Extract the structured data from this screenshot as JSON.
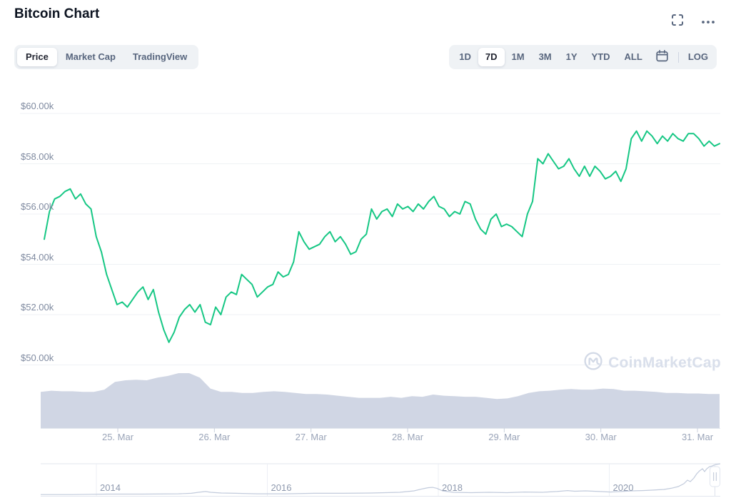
{
  "header": {
    "title": "Bitcoin Chart"
  },
  "window_controls": {
    "fullscreen_icon": "expand-corners",
    "more_icon": "ellipsis"
  },
  "toolbar": {
    "metric_tabs": [
      {
        "label": "Price",
        "active": true
      },
      {
        "label": "Market Cap",
        "active": false
      },
      {
        "label": "TradingView",
        "active": false
      }
    ],
    "range_buttons": [
      {
        "label": "1D",
        "active": false
      },
      {
        "label": "7D",
        "active": true
      },
      {
        "label": "1M",
        "active": false
      },
      {
        "label": "3M",
        "active": false
      },
      {
        "label": "1Y",
        "active": false
      },
      {
        "label": "YTD",
        "active": false
      },
      {
        "label": "ALL",
        "active": false
      }
    ],
    "calendar_icon": "calendar",
    "log_label": "LOG"
  },
  "watermark": {
    "text": "CoinMarketCap",
    "logo": "coinmarketcap-mark"
  },
  "chart_data": {
    "type": "line",
    "title": "Bitcoin price, 7-day window (USD)",
    "line_color": "#16c784",
    "volume_color": "#d0d6e4",
    "grid": true,
    "y_ticks": [
      "$60.00k",
      "$58.00k",
      "$56.00k",
      "$54.00k",
      "$52.00k",
      "$50.00k"
    ],
    "y_tick_values_k": [
      60,
      58,
      56,
      54,
      52,
      50
    ],
    "ylim_k": [
      50,
      60
    ],
    "x_ticks": [
      "25. Mar",
      "26. Mar",
      "27. Mar",
      "28. Mar",
      "29. Mar",
      "30. Mar",
      "31. Mar"
    ],
    "price_series_k": [
      55.0,
      56.1,
      56.6,
      56.7,
      56.9,
      57.0,
      56.6,
      56.8,
      56.4,
      56.2,
      55.1,
      54.5,
      53.6,
      53.0,
      52.4,
      52.5,
      52.3,
      52.6,
      52.9,
      53.1,
      52.6,
      53.0,
      52.1,
      51.4,
      50.9,
      51.3,
      51.9,
      52.2,
      52.4,
      52.1,
      52.4,
      51.7,
      51.6,
      52.3,
      52.0,
      52.7,
      52.9,
      52.8,
      53.6,
      53.4,
      53.2,
      52.7,
      52.9,
      53.1,
      53.2,
      53.7,
      53.5,
      53.6,
      54.1,
      55.3,
      54.9,
      54.6,
      54.7,
      54.8,
      55.1,
      55.3,
      54.9,
      55.1,
      54.8,
      54.4,
      54.5,
      55.0,
      55.2,
      56.2,
      55.8,
      56.1,
      56.2,
      55.9,
      56.4,
      56.2,
      56.3,
      56.1,
      56.4,
      56.2,
      56.5,
      56.7,
      56.3,
      56.2,
      55.9,
      56.1,
      56.0,
      56.5,
      56.4,
      55.8,
      55.4,
      55.2,
      55.8,
      56.0,
      55.5,
      55.6,
      55.5,
      55.3,
      55.1,
      56.0,
      56.5,
      58.2,
      58.0,
      58.4,
      58.1,
      57.8,
      57.9,
      58.2,
      57.8,
      57.5,
      57.9,
      57.5,
      57.9,
      57.7,
      57.4,
      57.5,
      57.7,
      57.3,
      57.8,
      59.0,
      59.3,
      58.9,
      59.3,
      59.1,
      58.8,
      59.1,
      58.9,
      59.2,
      59.0,
      58.9,
      59.2,
      59.2,
      59.0,
      58.7,
      58.9,
      58.7,
      58.8
    ],
    "volume_profile_relative": [
      66,
      68,
      67,
      67,
      66,
      66,
      70,
      84,
      87,
      88,
      87,
      92,
      95,
      100,
      100,
      92,
      72,
      66,
      66,
      64,
      64,
      66,
      67,
      66,
      64,
      62,
      62,
      61,
      59,
      57,
      55,
      55,
      55,
      57,
      55,
      58,
      57,
      61,
      59,
      58,
      57,
      57,
      55,
      53,
      54,
      58,
      64,
      67,
      68,
      70,
      71,
      70,
      70,
      72,
      71,
      68,
      68,
      67,
      66,
      64,
      64,
      63,
      63,
      62,
      62
    ]
  },
  "navigator": {
    "year_labels": [
      "2014",
      "2016",
      "2018",
      "2020"
    ],
    "sparkline_color": "#c2cbdc",
    "sparkline": [
      [
        57,
        0.04
      ],
      [
        100,
        0.04
      ],
      [
        150,
        0.055
      ],
      [
        200,
        0.055
      ],
      [
        250,
        0.065
      ],
      [
        268,
        0.08
      ],
      [
        278,
        0.11
      ],
      [
        288,
        0.135
      ],
      [
        295,
        0.11
      ],
      [
        310,
        0.09
      ],
      [
        330,
        0.08
      ],
      [
        360,
        0.065
      ],
      [
        400,
        0.065
      ],
      [
        440,
        0.08
      ],
      [
        480,
        0.08
      ],
      [
        520,
        0.09
      ],
      [
        560,
        0.11
      ],
      [
        580,
        0.155
      ],
      [
        592,
        0.22
      ],
      [
        600,
        0.255
      ],
      [
        606,
        0.265
      ],
      [
        612,
        0.235
      ],
      [
        620,
        0.155
      ],
      [
        635,
        0.11
      ],
      [
        660,
        0.1
      ],
      [
        685,
        0.11
      ],
      [
        710,
        0.1
      ],
      [
        735,
        0.12
      ],
      [
        760,
        0.11
      ],
      [
        780,
        0.135
      ],
      [
        795,
        0.165
      ],
      [
        805,
        0.145
      ],
      [
        820,
        0.155
      ],
      [
        840,
        0.135
      ],
      [
        855,
        0.12
      ],
      [
        870,
        0.135
      ],
      [
        885,
        0.155
      ],
      [
        900,
        0.165
      ],
      [
        915,
        0.18
      ],
      [
        930,
        0.2
      ],
      [
        940,
        0.235
      ],
      [
        950,
        0.29
      ],
      [
        958,
        0.38
      ],
      [
        963,
        0.49
      ],
      [
        967,
        0.445
      ],
      [
        972,
        0.555
      ],
      [
        976,
        0.69
      ],
      [
        980,
        0.78
      ],
      [
        984,
        0.845
      ],
      [
        987,
        0.755
      ],
      [
        990,
        0.845
      ],
      [
        994,
        0.91
      ],
      [
        998,
        0.935
      ],
      [
        1002,
        0.975
      ],
      [
        1009,
        1.0
      ]
    ]
  }
}
